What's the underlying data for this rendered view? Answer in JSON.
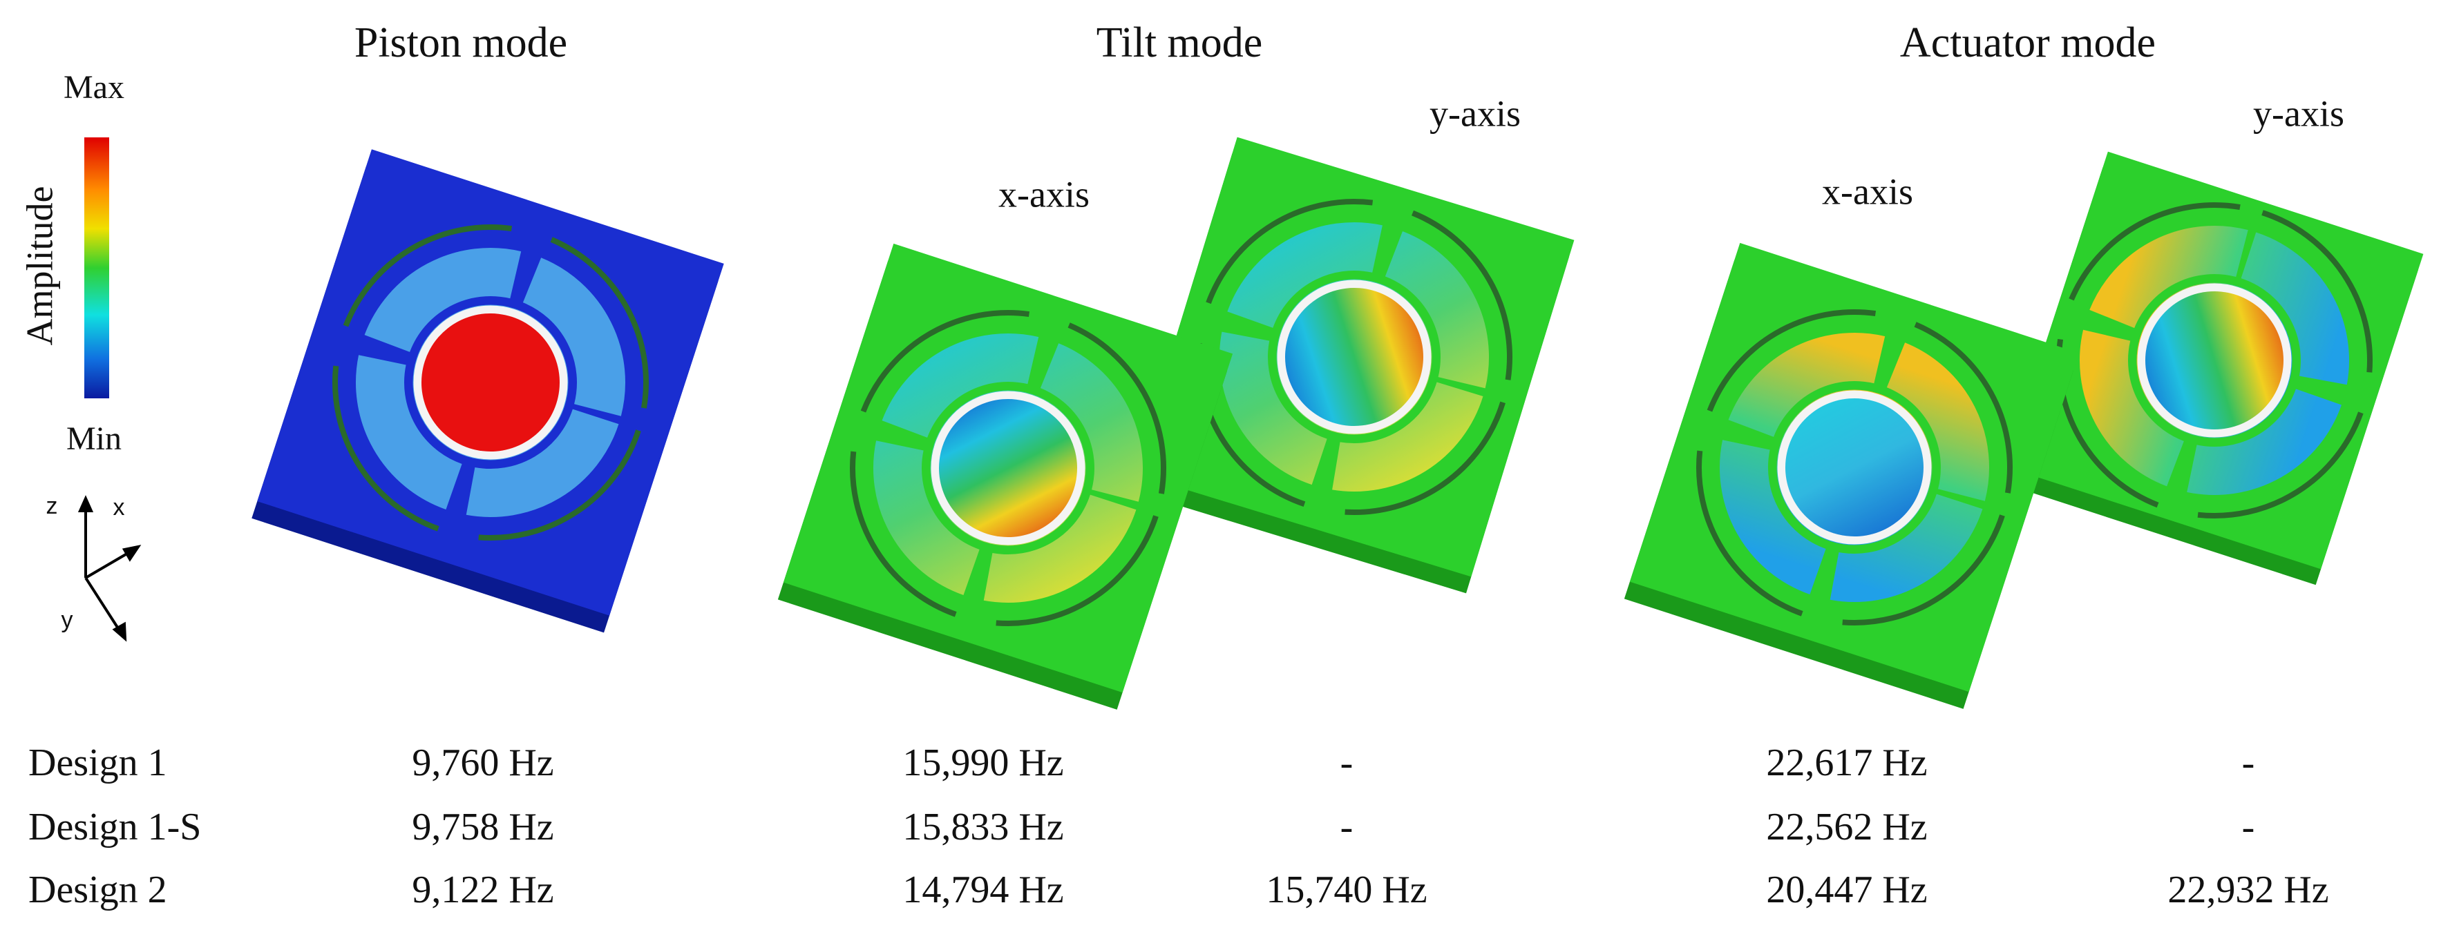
{
  "legend": {
    "max": "Max",
    "min": "Min",
    "label": "Amplitude",
    "axes": {
      "z": "z",
      "x": "x",
      "y": "y"
    }
  },
  "modes": [
    {
      "title": "Piston mode"
    },
    {
      "title": "Tilt mode",
      "views": [
        "x-axis",
        "y-axis"
      ]
    },
    {
      "title": "Actuator mode",
      "views": [
        "x-axis",
        "y-axis"
      ]
    }
  ],
  "table": {
    "rows": [
      {
        "label": "Design 1",
        "cells": [
          "9,760 Hz",
          "15,990 Hz",
          "-",
          "22,617 Hz",
          "-"
        ]
      },
      {
        "label": "Design 1-S",
        "cells": [
          "9,758 Hz",
          "15,833 Hz",
          "-",
          "22,562 Hz",
          "-"
        ]
      },
      {
        "label": "Design 2",
        "cells": [
          "9,122 Hz",
          "14,794 Hz",
          "15,740 Hz",
          "20,447 Hz",
          "22,932 Hz"
        ]
      }
    ]
  }
}
